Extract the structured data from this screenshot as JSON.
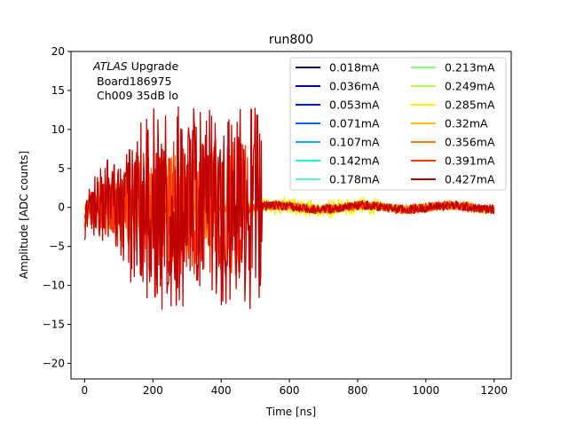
{
  "chart_data": {
    "type": "line",
    "title": "run800",
    "xlabel": "Time [ns]",
    "ylabel": "Amplitude [ADC counts]",
    "xlim": [
      -40,
      1250
    ],
    "ylim": [
      -22,
      20
    ],
    "xticks": [
      0,
      200,
      400,
      600,
      800,
      1000,
      1200
    ],
    "yticks": [
      -20,
      -15,
      -10,
      -5,
      0,
      5,
      10,
      15,
      20
    ],
    "grid": false,
    "legend_position": "top-right",
    "legend_columns": 2,
    "annotation": {
      "italic": "ATLAS",
      "upgrade": "Upgrade",
      "board": "Board186975",
      "channel": "Ch009 35dB lo"
    },
    "series": [
      {
        "name": "0.018mA",
        "color": "#00007f",
        "amp": 0.3,
        "burst_end": 0,
        "tail": 0.3
      },
      {
        "name": "0.036mA",
        "color": "#0000c8",
        "amp": 0.3,
        "burst_end": 0,
        "tail": 0.3
      },
      {
        "name": "0.053mA",
        "color": "#0010ff",
        "amp": 0.3,
        "burst_end": 0,
        "tail": 0.3
      },
      {
        "name": "0.071mA",
        "color": "#0064ff",
        "amp": 0.3,
        "burst_end": 0,
        "tail": 0.3
      },
      {
        "name": "0.107mA",
        "color": "#00b0f0",
        "amp": 0.3,
        "burst_end": 0,
        "tail": 0.3
      },
      {
        "name": "0.142mA",
        "color": "#1cf2db",
        "amp": 0.3,
        "burst_end": 0,
        "tail": 0.3
      },
      {
        "name": "0.178mA",
        "color": "#4dffaa",
        "amp": 0.35,
        "burst_end": 0,
        "tail": 0.35
      },
      {
        "name": "0.213mA",
        "color": "#7dff7a",
        "amp": 0.4,
        "burst_end": 0,
        "tail": 0.4
      },
      {
        "name": "0.249mA",
        "color": "#b0ff46",
        "amp": 0.5,
        "burst_end": 0,
        "tail": 0.5
      },
      {
        "name": "0.285mA",
        "color": "#f4f802",
        "amp": 1.2,
        "burst_end": 860,
        "tail": 0.5
      },
      {
        "name": "0.32mA",
        "color": "#ffb900",
        "amp": 4,
        "burst_end": 300,
        "tail": 0.6
      },
      {
        "name": "0.356mA",
        "color": "#ff7300",
        "amp": 7,
        "burst_end": 380,
        "tail": 0.6
      },
      {
        "name": "0.391mA",
        "color": "#ff3000",
        "amp": 9,
        "burst_end": 480,
        "tail": 0.6
      },
      {
        "name": "0.427mA",
        "color": "#c00000",
        "amp": 13,
        "burst_end": 520,
        "tail": 0.6
      }
    ]
  }
}
